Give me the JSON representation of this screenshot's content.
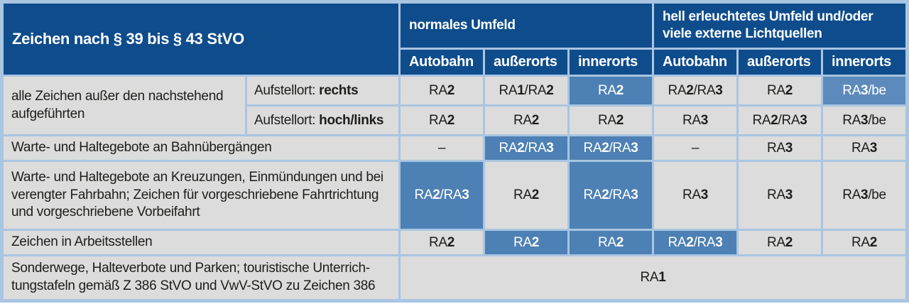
{
  "colors": {
    "header_bg": "#0e4c8c",
    "highlight": "#4d80b4",
    "highlight_light": "#5d8abc",
    "cell_bg": "#dcdcdc",
    "border": "#a9c5e1",
    "body_text": "#1d1d1b",
    "header_text": "#ffffff"
  },
  "header": {
    "corner": "Zeichen nach § 39 bis § 43 StVO",
    "groups": [
      {
        "label": "normales Umfeld",
        "cols": [
          "Autobahn",
          "außerorts",
          "innerorts"
        ]
      },
      {
        "label": "hell erleuchtetes Umfeld und/oder viele externe Lichtquellen",
        "cols": [
          "Autobahn",
          "außerorts",
          "innerorts"
        ]
      }
    ]
  },
  "rows": [
    {
      "label": "alle Zeichen außer den nachstehend aufgeführten",
      "sublabel": {
        "prefix": "Aufstellort: ",
        "bold": "rechts"
      },
      "cells": [
        {
          "v": "RA2"
        },
        {
          "v": "RA1/RA2"
        },
        {
          "v": "RA2",
          "hl": true
        },
        {
          "v": "RA2/RA3"
        },
        {
          "v": "RA2"
        },
        {
          "v": "RA3/be",
          "hl": "light"
        }
      ]
    },
    {
      "sublabel": {
        "prefix": "Aufstellort: ",
        "bold": "hoch/links"
      },
      "cells": [
        {
          "v": "RA2"
        },
        {
          "v": "RA2"
        },
        {
          "v": "RA2"
        },
        {
          "v": "RA3"
        },
        {
          "v": "RA2/RA3"
        },
        {
          "v": "RA3/be"
        }
      ]
    },
    {
      "label": "Warte- und Haltegebote an Bahnübergängen",
      "cells": [
        {
          "v": "–"
        },
        {
          "v": "RA2/RA3",
          "hl": true
        },
        {
          "v": "RA2/RA3",
          "hl": true
        },
        {
          "v": "–"
        },
        {
          "v": "RA3"
        },
        {
          "v": "RA3"
        }
      ]
    },
    {
      "label": "Warte- und Haltegebote an Kreuzungen, Einmündungen und bei verengter Fahrbahn; Zeichen für vorgeschriebene Fahrtrichtung und vorgeschriebene Vorbeifahrt",
      "cells": [
        {
          "v": "RA2/RA3",
          "hl": true
        },
        {
          "v": "RA2"
        },
        {
          "v": "RA2/RA3",
          "hl": true
        },
        {
          "v": "RA3"
        },
        {
          "v": "RA3"
        },
        {
          "v": "RA3/be"
        }
      ]
    },
    {
      "label": "Zeichen in Arbeitsstellen",
      "cells": [
        {
          "v": "RA2"
        },
        {
          "v": "RA2",
          "hl": true
        },
        {
          "v": "RA2",
          "hl": true
        },
        {
          "v": "RA2/RA3",
          "hl": true
        },
        {
          "v": "RA2"
        },
        {
          "v": "RA2"
        }
      ]
    },
    {
      "label": "Sonderwege, Halteverbote und Parken; touristische Unterrich-tungstafeln gemäß Z 386 StVO und VwV-StVO zu Zeichen 386",
      "cells": [
        {
          "v": "RA1"
        }
      ]
    }
  ]
}
